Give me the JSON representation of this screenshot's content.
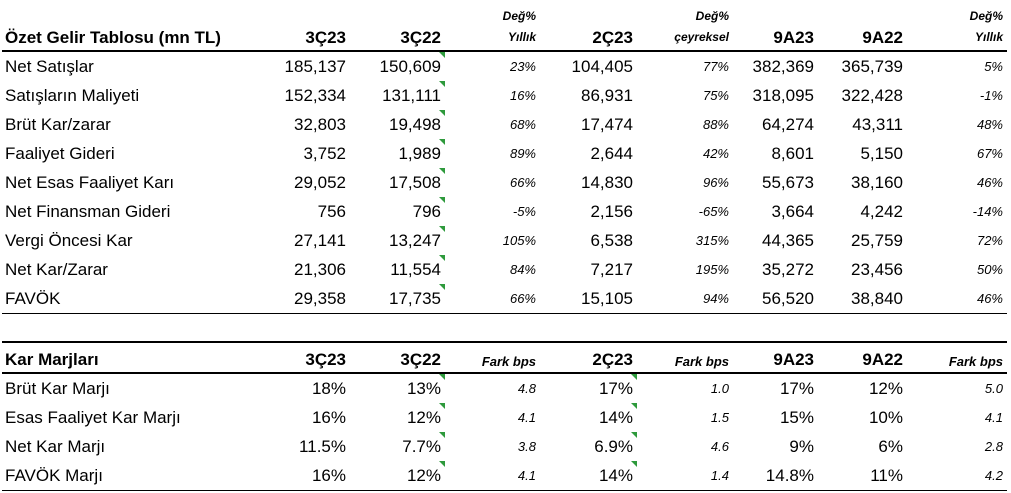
{
  "income": {
    "headers": {
      "label": "Özet Gelir Tablosu (mn TL)",
      "q3_23": "3Ç23",
      "q3_22": "3Ç22",
      "yoy_top": "Değ%",
      "yoy_bottom": "Yıllık",
      "q2_23": "2Ç23",
      "qoq_top": "Değ%",
      "qoq_bottom": "çeyreksel",
      "m9_23": "9A23",
      "m9_22": "9A22",
      "yoy9_top": "Değ%",
      "yoy9_bottom": "Yıllık"
    },
    "rows": [
      {
        "label": "Net Satışlar",
        "q3_23": "185,137",
        "q3_22": "150,609",
        "yoy": "23%",
        "q2_23": "104,405",
        "qoq": "77%",
        "m9_23": "382,369",
        "m9_22": "365,739",
        "yoy9": "5%"
      },
      {
        "label": "Satışların Maliyeti",
        "q3_23": "152,334",
        "q3_22": "131,111",
        "yoy": "16%",
        "q2_23": "86,931",
        "qoq": "75%",
        "m9_23": "318,095",
        "m9_22": "322,428",
        "yoy9": "-1%"
      },
      {
        "label": "Brüt Kar/zarar",
        "q3_23": "32,803",
        "q3_22": "19,498",
        "yoy": "68%",
        "q2_23": "17,474",
        "qoq": "88%",
        "m9_23": "64,274",
        "m9_22": "43,311",
        "yoy9": "48%"
      },
      {
        "label": "Faaliyet Gideri",
        "q3_23": "3,752",
        "q3_22": "1,989",
        "yoy": "89%",
        "q2_23": "2,644",
        "qoq": "42%",
        "m9_23": "8,601",
        "m9_22": "5,150",
        "yoy9": "67%"
      },
      {
        "label": "Net Esas Faaliyet Karı",
        "q3_23": "29,052",
        "q3_22": "17,508",
        "yoy": "66%",
        "q2_23": "14,830",
        "qoq": "96%",
        "m9_23": "55,673",
        "m9_22": "38,160",
        "yoy9": "46%"
      },
      {
        "label": "Net Finansman Gideri",
        "q3_23": "756",
        "q3_22": "796",
        "yoy": "-5%",
        "q2_23": "2,156",
        "qoq": "-65%",
        "m9_23": "3,664",
        "m9_22": "4,242",
        "yoy9": "-14%"
      },
      {
        "label": "Vergi Öncesi Kar",
        "q3_23": "27,141",
        "q3_22": "13,247",
        "yoy": "105%",
        "q2_23": "6,538",
        "qoq": "315%",
        "m9_23": "44,365",
        "m9_22": "25,759",
        "yoy9": "72%"
      },
      {
        "label": "Net Kar/Zarar",
        "q3_23": "21,306",
        "q3_22": "11,554",
        "yoy": "84%",
        "q2_23": "7,217",
        "qoq": "195%",
        "m9_23": "35,272",
        "m9_22": "23,456",
        "yoy9": "50%"
      },
      {
        "label": "FAVÖK",
        "q3_23": "29,358",
        "q3_22": "17,735",
        "yoy": "66%",
        "q2_23": "15,105",
        "qoq": "94%",
        "m9_23": "56,520",
        "m9_22": "38,840",
        "yoy9": "46%"
      }
    ]
  },
  "margins": {
    "headers": {
      "label": "Kar Marjları",
      "q3_23": "3Ç23",
      "q3_22": "3Ç22",
      "fark1": "Fark bps",
      "q2_23": "2Ç23",
      "fark2": "Fark bps",
      "m9_23": "9A23",
      "m9_22": "9A22",
      "fark3": "Fark bps"
    },
    "rows": [
      {
        "label": "Brüt Kar Marjı",
        "q3_23": "18%",
        "q3_22": "13%",
        "fark1": "4.8",
        "q2_23": "17%",
        "fark2": "1.0",
        "m9_23": "17%",
        "m9_22": "12%",
        "fark3": "5.0"
      },
      {
        "label": "Esas Faaliyet Kar Marjı",
        "q3_23": "16%",
        "q3_22": "12%",
        "fark1": "4.1",
        "q2_23": "14%",
        "fark2": "1.5",
        "m9_23": "15%",
        "m9_22": "10%",
        "fark3": "4.1"
      },
      {
        "label": "Net Kar Marjı",
        "q3_23": "11.5%",
        "q3_22": "7.7%",
        "fark1": "3.8",
        "q2_23": "6.9%",
        "fark2": "4.6",
        "m9_23": "9%",
        "m9_22": "6%",
        "fark3": "2.8"
      },
      {
        "label": "FAVÖK Marjı",
        "q3_23": "16%",
        "q3_22": "12%",
        "fark1": "4.1",
        "q2_23": "14%",
        "fark2": "1.4",
        "m9_23": "14.8%",
        "m9_22": "11%",
        "fark3": "4.2"
      }
    ]
  },
  "colors": {
    "indicator": "#2e9a3c"
  }
}
